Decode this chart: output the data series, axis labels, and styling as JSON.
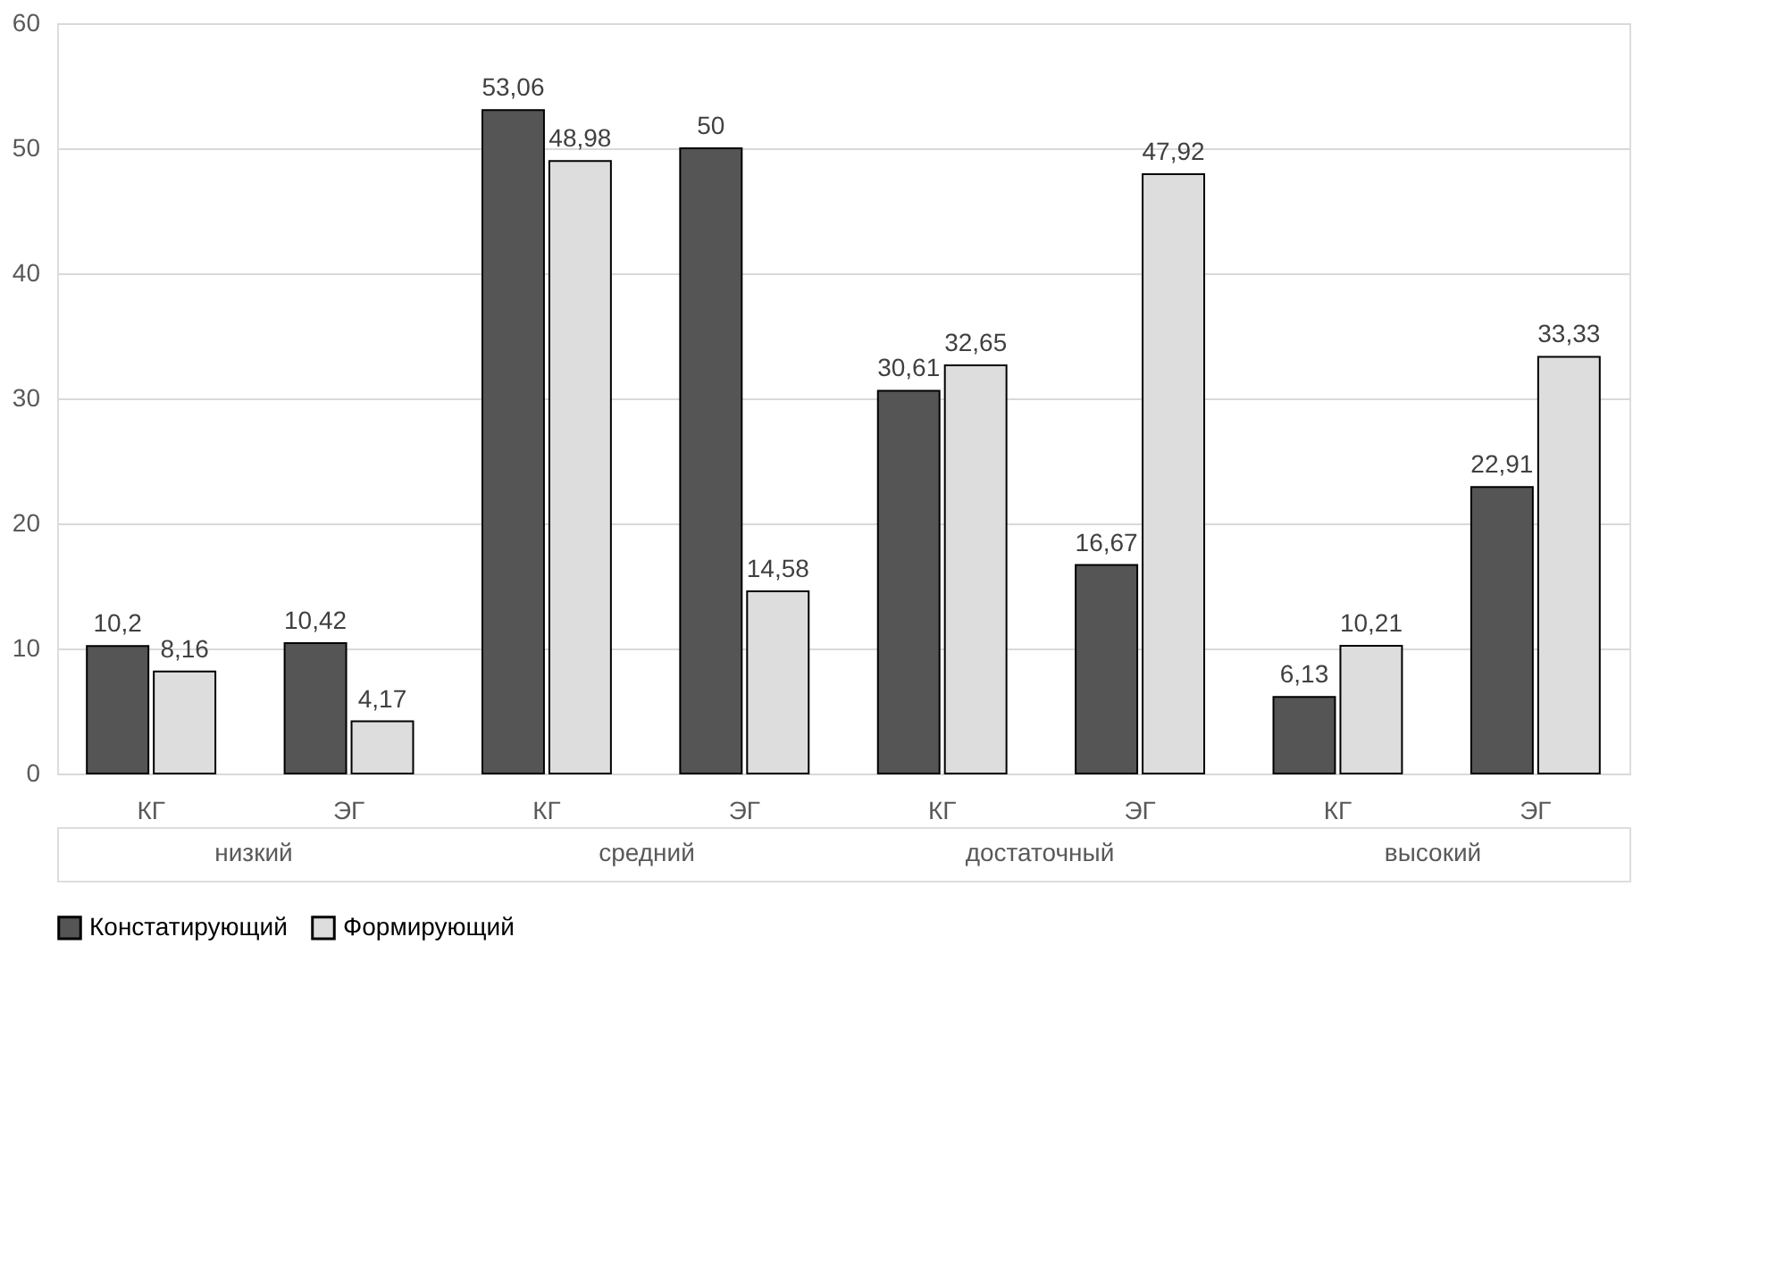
{
  "chart_data": {
    "type": "bar",
    "categories": [
      "КГ",
      "ЭГ",
      "КГ",
      "ЭГ",
      "КГ",
      "ЭГ",
      "КГ",
      "ЭГ"
    ],
    "series": [
      {
        "name": "Констатирующий",
        "color": "#555555",
        "values": [
          10.2,
          10.42,
          53.06,
          50,
          30.61,
          16.67,
          6.13,
          22.91
        ],
        "value_labels": [
          "10,2",
          "10,42",
          "53,06",
          "50",
          "30,61",
          "16,67",
          "6,13",
          "22,91"
        ]
      },
      {
        "name": "Формирующий",
        "color": "#dddddd",
        "values": [
          8.16,
          4.17,
          48.98,
          14.58,
          32.65,
          47.92,
          10.21,
          33.33
        ],
        "value_labels": [
          "8,16",
          "4,17",
          "48,98",
          "14,58",
          "32,65",
          "47,92",
          "10,21",
          "33,33"
        ]
      }
    ],
    "annotations": [
      "низкий",
      "средний",
      "достаточный",
      "высокий"
    ],
    "ylim": [
      0,
      60
    ],
    "yticks": [
      0,
      10,
      20,
      30,
      40,
      50,
      60
    ],
    "grid": "y",
    "legend": "bottom"
  }
}
